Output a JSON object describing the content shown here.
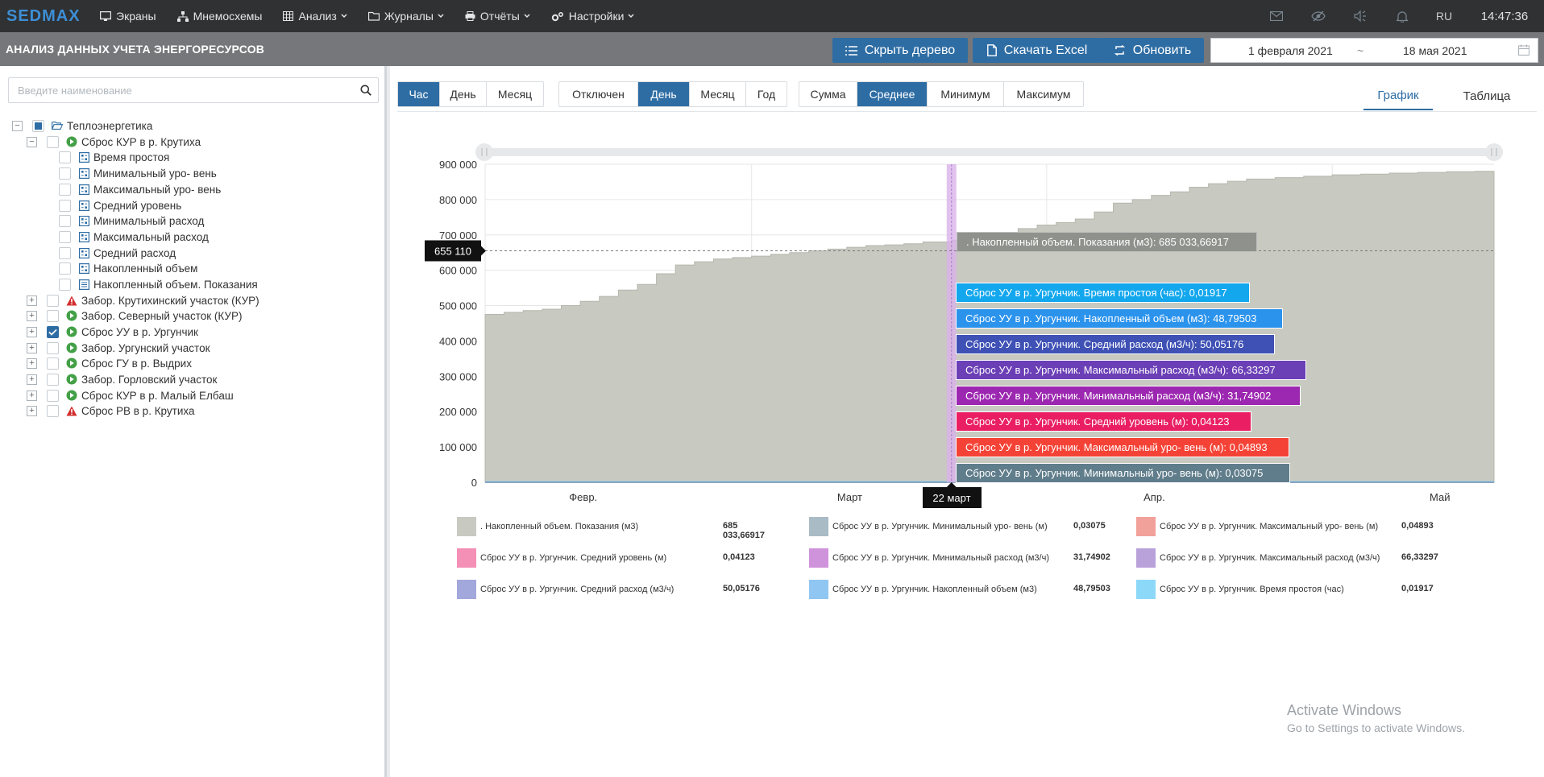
{
  "topbar": {
    "logo": "SEDMAX",
    "nav": [
      {
        "label": "Экраны",
        "icon": "monitor-icon",
        "has_menu": false
      },
      {
        "label": "Мнемосхемы",
        "icon": "sitemap-icon",
        "has_menu": false
      },
      {
        "label": "Анализ",
        "icon": "table-icon",
        "has_menu": true
      },
      {
        "label": "Журналы",
        "icon": "folder-icon",
        "has_menu": true
      },
      {
        "label": "Отчёты",
        "icon": "print-icon",
        "has_menu": true
      },
      {
        "label": "Настройки",
        "icon": "gears-icon",
        "has_menu": true
      }
    ],
    "lang": "RU",
    "time": "14:47:36"
  },
  "titlebar": {
    "title": "АНАЛИЗ ДАННЫХ УЧЕТА ЭНЕРГОРЕСУРСОВ",
    "hide_tree": "Скрыть дерево",
    "excel": "Скачать Excel",
    "refresh": "Обновить",
    "date_from": "1 февраля 2021",
    "date_sep": "~",
    "date_to": "18 мая 2021"
  },
  "tree": {
    "search_placeholder": "Введите наименование",
    "root": "Теплоэнергетика",
    "expanded": "Сброс КУР в р. Крутиха",
    "children": [
      "Время простоя",
      "Минимальный уро- вень",
      "Максимальный уро- вень",
      "Средний уровень",
      "Минимальный расход",
      "Максимальный расход",
      "Средний расход",
      "Накопленный объем",
      "Накопленный объем. Показания"
    ],
    "siblings": [
      {
        "label": "Забор. Крутихинский участок (КУР)",
        "status": "warning",
        "checked": false
      },
      {
        "label": "Забор. Северный участок (КУР)",
        "status": "ok",
        "checked": false
      },
      {
        "label": "Сброс УУ в р. Ургунчик",
        "status": "ok",
        "checked": true
      },
      {
        "label": "Забор. Ургунский участок",
        "status": "ok",
        "checked": false
      },
      {
        "label": "Сброс ГУ в р. Выдрих",
        "status": "ok",
        "checked": false
      },
      {
        "label": "Забор. Горловский участок",
        "status": "ok",
        "checked": false
      },
      {
        "label": "Сброс КУР в р. Малый Елбаш",
        "status": "ok",
        "checked": false
      },
      {
        "label": "Сброс РВ в р. Крутиха",
        "status": "warning",
        "checked": false
      }
    ]
  },
  "controls": {
    "interval": {
      "options": [
        "Час",
        "День",
        "Месяц"
      ],
      "active": "Час"
    },
    "grouping": {
      "options": [
        "Отключен",
        "День",
        "Месяц",
        "Год"
      ],
      "active": "День"
    },
    "aggregate": {
      "options": [
        "Сумма",
        "Среднее",
        "Минимум",
        "Максимум"
      ],
      "active": "Среднее"
    },
    "views": {
      "options": [
        "График",
        "Таблица"
      ],
      "active": "График"
    }
  },
  "chart_data": {
    "type": "area",
    "title": "",
    "xlabel": "",
    "ylabel": "",
    "x_range": [
      "2021-02-01",
      "2021-05-18"
    ],
    "x_ticks": [
      "Февр.",
      "Март",
      "Апр.",
      "Май"
    ],
    "y_ticks": [
      "0",
      "100 000",
      "200 000",
      "300 000",
      "400 000",
      "500 000",
      "600 000",
      "700 000",
      "800 000",
      "900 000"
    ],
    "ylim": [
      0,
      900000
    ],
    "grid": true,
    "crosshair_y_label": "655 110",
    "crosshair_x_label": "22 март",
    "series": [
      {
        "name": ". Накопленный объем. Показания (м3)",
        "color": "#c8c9c1",
        "x": [
          "2021-02-01",
          "2021-02-03",
          "2021-02-05",
          "2021-02-07",
          "2021-02-09",
          "2021-02-11",
          "2021-02-13",
          "2021-02-15",
          "2021-02-17",
          "2021-02-19",
          "2021-02-21",
          "2021-02-23",
          "2021-02-25",
          "2021-02-27",
          "2021-03-01",
          "2021-03-03",
          "2021-03-05",
          "2021-03-07",
          "2021-03-09",
          "2021-03-11",
          "2021-03-13",
          "2021-03-15",
          "2021-03-17",
          "2021-03-19",
          "2021-03-22",
          "2021-03-25",
          "2021-03-27",
          "2021-03-29",
          "2021-03-31",
          "2021-04-02",
          "2021-04-04",
          "2021-04-06",
          "2021-04-08",
          "2021-04-10",
          "2021-04-12",
          "2021-04-14",
          "2021-04-16",
          "2021-04-18",
          "2021-04-20",
          "2021-04-22",
          "2021-04-25",
          "2021-04-28",
          "2021-05-01",
          "2021-05-04",
          "2021-05-07",
          "2021-05-10",
          "2021-05-13",
          "2021-05-16",
          "2021-05-18"
        ],
        "values": [
          475000,
          481000,
          486000,
          490000,
          500000,
          512000,
          526000,
          544000,
          560000,
          590000,
          615000,
          624000,
          632000,
          636000,
          640000,
          645000,
          650000,
          655000,
          660000,
          665000,
          670000,
          672000,
          675000,
          680000,
          685034,
          690000,
          705000,
          718000,
          728000,
          735000,
          745000,
          765000,
          790000,
          800000,
          812000,
          822000,
          835000,
          845000,
          852000,
          858000,
          862000,
          866000,
          870000,
          872000,
          875000,
          877000,
          879000,
          880000,
          881000
        ]
      },
      {
        "name": "Сброс УУ в р. Ургунчик. Минимальный уро- вень (м)",
        "color": "#a9bcc6",
        "x": [
          "2021-02-01",
          "2021-05-18"
        ],
        "values": [
          0.03,
          0.03
        ]
      },
      {
        "name": "Сброс УУ в р. Ургунчик. Максимальный уро- вень (м)",
        "color": "#f2a09a",
        "x": [
          "2021-02-01",
          "2021-05-18"
        ],
        "values": [
          0.05,
          0.05
        ]
      },
      {
        "name": "Сброс УУ в р. Ургунчик. Средний уровень (м)",
        "color": "#f48fb6",
        "x": [
          "2021-02-01",
          "2021-05-18"
        ],
        "values": [
          0.04,
          0.04
        ]
      },
      {
        "name": "Сброс УУ в р. Ургунчик. Минимальный расход (м3/ч)",
        "color": "#cf93dc",
        "x": [
          "2021-02-01",
          "2021-05-18"
        ],
        "values": [
          31.7,
          31.7
        ]
      },
      {
        "name": "Сброс УУ в р. Ургунчик. Максимальный расход (м3/ч)",
        "color": "#b9a2da",
        "x": [
          "2021-02-01",
          "2021-05-18"
        ],
        "values": [
          66.3,
          66.3
        ]
      },
      {
        "name": "Сброс УУ в р. Ургунчик. Средний расход (м3/ч)",
        "color": "#a3a8dc",
        "x": [
          "2021-02-01",
          "2021-05-18"
        ],
        "values": [
          50.1,
          50.1
        ]
      },
      {
        "name": "Сброс УУ в р. Ургунчик. Накопленный объем (м3)",
        "color": "#90c6f2",
        "x": [
          "2021-02-01",
          "2021-05-18"
        ],
        "values": [
          48.8,
          48.8
        ]
      },
      {
        "name": "Сброс УУ в р. Ургунчик. Время простоя (час)",
        "color": "#8cd8f8",
        "x": [
          "2021-02-01",
          "2021-05-18"
        ],
        "values": [
          0.02,
          0.02
        ]
      }
    ],
    "tooltips": [
      {
        "text": ". Накопленный объем. Показания (м3): 685 033,66917",
        "color": "#8f918c"
      },
      {
        "text": "Сброс УУ в р. Ургунчик. Время простоя (час): 0,01917",
        "color": "#13a7ee"
      },
      {
        "text": "Сброс УУ в р. Ургунчик. Накопленный объем (м3): 48,79503",
        "color": "#2b93ec"
      },
      {
        "text": "Сброс УУ в р. Ургунчик. Средний расход (м3/ч): 50,05176",
        "color": "#3f51b5"
      },
      {
        "text": "Сброс УУ в р. Ургунчик. Максимальный расход (м3/ч): 66,33297",
        "color": "#6b3fb6"
      },
      {
        "text": "Сброс УУ в р. Ургунчик. Минимальный расход (м3/ч): 31,74902",
        "color": "#9c27b0"
      },
      {
        "text": "Сброс УУ в р. Ургунчик. Средний уровень (м): 0,04123",
        "color": "#e91e63"
      },
      {
        "text": "Сброс УУ в р. Ургунчик. Максимальный уро- вень (м): 0,04893",
        "color": "#f44336"
      },
      {
        "text": "Сброс УУ в р. Ургунчик. Минимальный уро- вень (м): 0,03075",
        "color": "#607d8b"
      }
    ],
    "legend": [
      {
        "label": ". Накопленный объем. Показания (м3)",
        "value": "685 033,66917",
        "color": "#c8c9c1"
      },
      {
        "label": "Сброс УУ в р. Ургунчик. Минимальный уро- вень (м)",
        "value": "0,03075",
        "color": "#a9bcc6"
      },
      {
        "label": "Сброс УУ в р. Ургунчик. Максимальный уро- вень (м)",
        "value": "0,04893",
        "color": "#f2a09a"
      },
      {
        "label": "Сброс УУ в р. Ургунчик. Средний уровень (м)",
        "value": "0,04123",
        "color": "#f48fb6"
      },
      {
        "label": "Сброс УУ в р. Ургунчик. Минимальный расход (м3/ч)",
        "value": "31,74902",
        "color": "#cf93dc"
      },
      {
        "label": "Сброс УУ в р. Ургунчик. Максимальный расход (м3/ч)",
        "value": "66,33297",
        "color": "#b9a2da"
      },
      {
        "label": "Сброс УУ в р. Ургунчик. Средний расход (м3/ч)",
        "value": "50,05176",
        "color": "#a3a8dc"
      },
      {
        "label": "Сброс УУ в р. Ургунчик. Накопленный объем (м3)",
        "value": "48,79503",
        "color": "#90c6f2"
      },
      {
        "label": "Сброс УУ в р. Ургунчик. Время простоя (час)",
        "value": "0,01917",
        "color": "#8cd8f8"
      }
    ]
  },
  "watermark": {
    "line1": "Activate Windows",
    "line2": "Go to Settings to activate Windows."
  }
}
